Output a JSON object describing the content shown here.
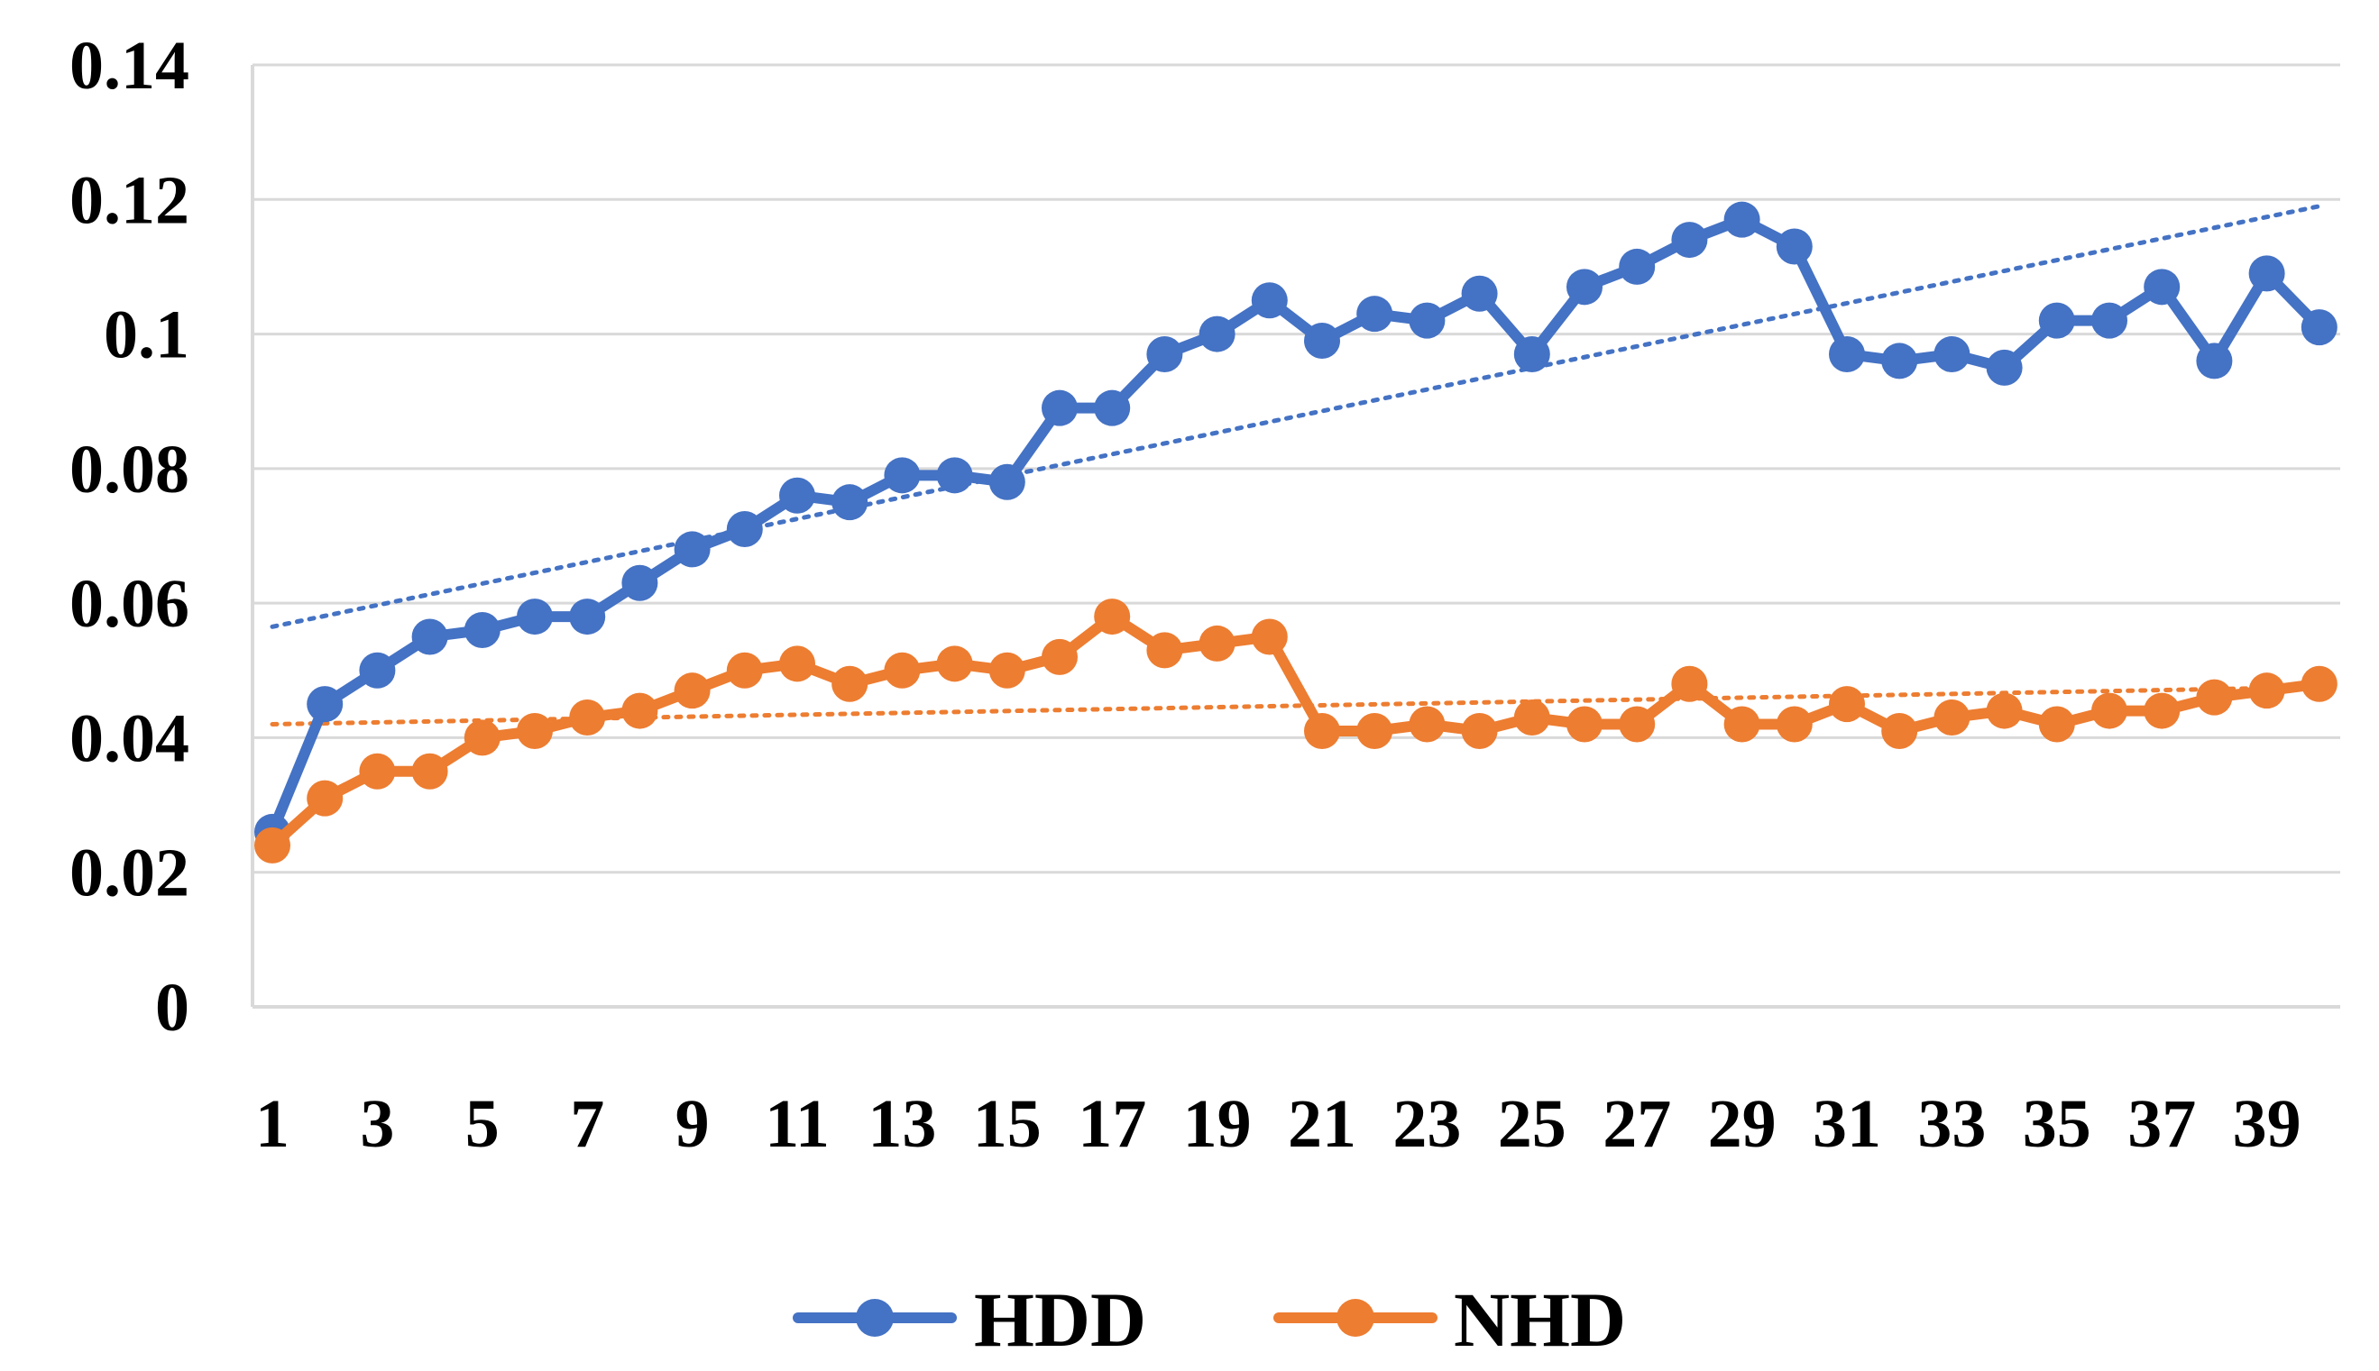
{
  "chart_data": {
    "type": "line",
    "title": "",
    "xlabel": "",
    "ylabel": "",
    "x": [
      1,
      2,
      3,
      4,
      5,
      6,
      7,
      8,
      9,
      10,
      11,
      12,
      13,
      14,
      15,
      16,
      17,
      18,
      19,
      20,
      21,
      22,
      23,
      24,
      25,
      26,
      27,
      28,
      29,
      30,
      31,
      32,
      33,
      34,
      35,
      36,
      37,
      38,
      39,
      40
    ],
    "x_tick_labels": [
      "1",
      "3",
      "5",
      "7",
      "9",
      "11",
      "13",
      "15",
      "17",
      "19",
      "21",
      "23",
      "25",
      "27",
      "29",
      "31",
      "33",
      "35",
      "37",
      "39"
    ],
    "y_tick_labels": [
      "0",
      "0.02",
      "0.04",
      "0.06",
      "0.08",
      "0.1",
      "0.12",
      "0.14"
    ],
    "ylim": [
      0,
      0.14
    ],
    "grid": true,
    "legend_position": "bottom",
    "series": [
      {
        "name": "HDD",
        "color": "#4472C4",
        "values": [
          0.026,
          0.045,
          0.05,
          0.055,
          0.056,
          0.058,
          0.058,
          0.063,
          0.068,
          0.071,
          0.076,
          0.075,
          0.079,
          0.079,
          0.078,
          0.089,
          0.089,
          0.097,
          0.1,
          0.105,
          0.099,
          0.103,
          0.102,
          0.106,
          0.097,
          0.107,
          0.11,
          0.114,
          0.117,
          0.113,
          0.097,
          0.096,
          0.097,
          0.095,
          0.102,
          0.102,
          0.107,
          0.096,
          0.109,
          0.101
        ],
        "trendline": {
          "style": "dotted",
          "start": 0.0565,
          "end": 0.119
        }
      },
      {
        "name": "NHD",
        "color": "#ED7D31",
        "values": [
          0.024,
          0.031,
          0.035,
          0.035,
          0.04,
          0.041,
          0.043,
          0.044,
          0.047,
          0.05,
          0.051,
          0.048,
          0.05,
          0.051,
          0.05,
          0.052,
          0.058,
          0.053,
          0.054,
          0.055,
          0.041,
          0.041,
          0.042,
          0.041,
          0.043,
          0.042,
          0.042,
          0.048,
          0.042,
          0.042,
          0.045,
          0.041,
          0.043,
          0.044,
          0.042,
          0.044,
          0.044,
          0.046,
          0.047,
          0.048
        ],
        "trendline": {
          "style": "dotted",
          "start": 0.042,
          "end": 0.0475
        }
      }
    ]
  }
}
